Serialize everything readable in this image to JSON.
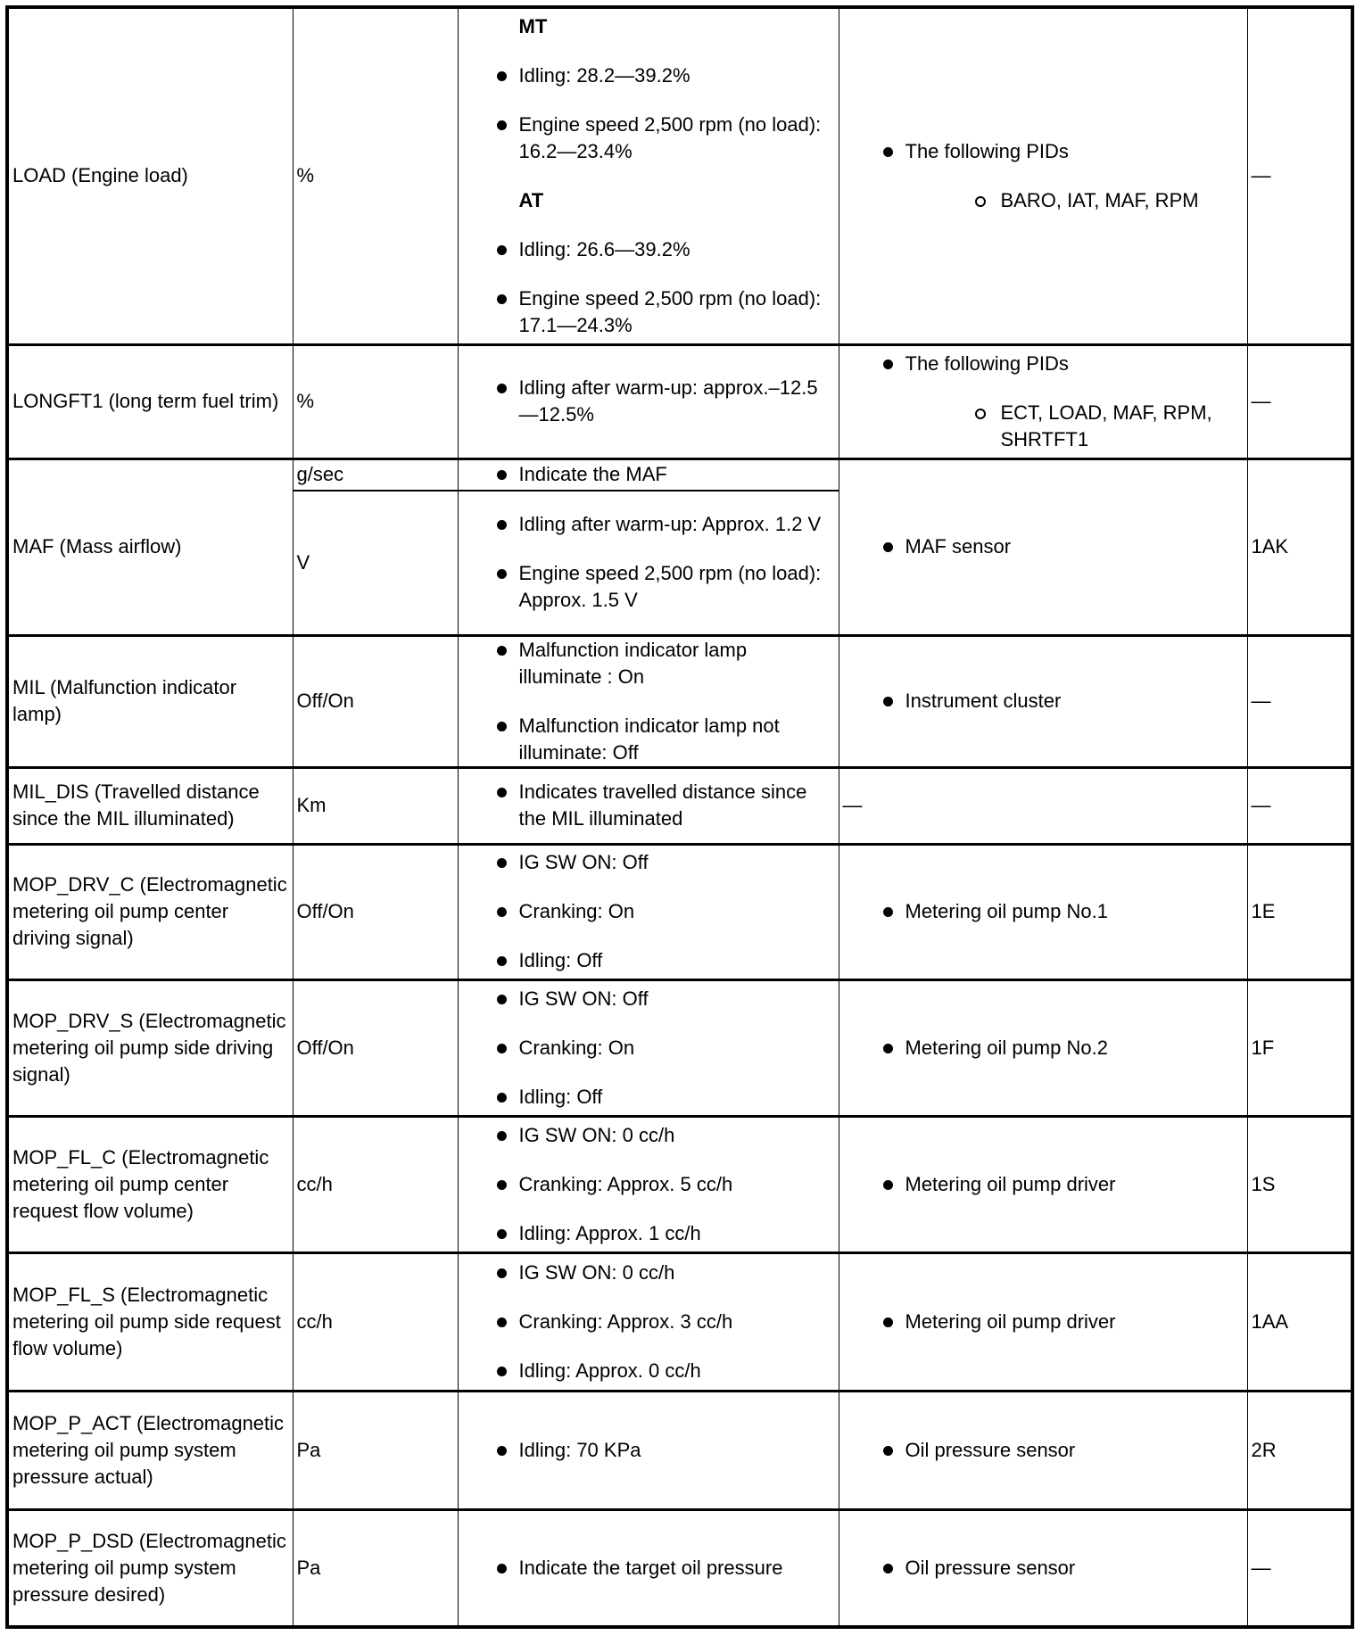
{
  "rows": [
    {
      "name": "LOAD (Engine load)",
      "unit": "%",
      "spec": [
        {
          "heading": "MT"
        },
        {
          "item": "Idling: 28.2—39.2%"
        },
        {
          "item": "Engine speed 2,500 rpm (no load): 16.2—23.4%"
        },
        {
          "heading": "AT"
        },
        {
          "item": "Idling: 26.6—39.2%"
        },
        {
          "item": "Engine speed 2,500 rpm (no load): 17.1—24.3%"
        }
      ],
      "cond": {
        "item": "The following PIDs",
        "sub": "BARO, IAT, MAF, RPM"
      },
      "terminal": "—"
    },
    {
      "name": "LONGFT1 (long term fuel trim)",
      "unit": "%",
      "spec": [
        {
          "item": "Idling after warm-up: approx.–12.5—12.5%"
        }
      ],
      "cond": {
        "item": "The following PIDs",
        "sub": "ECT, LOAD, MAF, RPM, SHRTFT1"
      },
      "terminal": "—"
    },
    {
      "name": "MAF (Mass airflow)",
      "unit": "g/sec",
      "spec": [
        {
          "item": "Indicate the MAF"
        }
      ],
      "cond": {
        "item": "MAF sensor"
      },
      "terminal": "1AK",
      "sub_unit": "V",
      "sub_spec": [
        {
          "item": "Idling after warm-up: Approx. 1.2 V"
        },
        {
          "item": "Engine speed 2,500 rpm (no load): Approx. 1.5 V"
        }
      ]
    },
    {
      "name": "MIL (Malfunction indicator lamp)",
      "unit": "Off/On",
      "spec": [
        {
          "item": "Malfunction indicator lamp illuminate : On"
        },
        {
          "item": "Malfunction indicator lamp not illuminate: Off"
        }
      ],
      "cond": {
        "item": "Instrument cluster"
      },
      "terminal": "—"
    },
    {
      "name": "MIL_DIS (Travelled distance since the MIL illuminated)",
      "unit": "Km",
      "spec": [
        {
          "item": "Indicates travelled distance since the MIL illuminated"
        }
      ],
      "cond": {
        "text": "—"
      },
      "terminal": "—"
    },
    {
      "name": "MOP_DRV_C (Electromagnetic metering oil pump center driving signal)",
      "unit": "Off/On",
      "spec": [
        {
          "item": "IG SW ON: Off"
        },
        {
          "item": "Cranking: On"
        },
        {
          "item": "Idling: Off"
        }
      ],
      "cond": {
        "item": "Metering oil pump No.1"
      },
      "terminal": "1E"
    },
    {
      "name": "MOP_DRV_S (Electromagnetic metering oil pump side driving signal)",
      "unit": "Off/On",
      "spec": [
        {
          "item": "IG SW ON: Off"
        },
        {
          "item": "Cranking: On"
        },
        {
          "item": "Idling: Off"
        }
      ],
      "cond": {
        "item": "Metering oil pump No.2"
      },
      "terminal": "1F"
    },
    {
      "name": "MOP_FL_C (Electromagnetic metering oil pump center request flow volume)",
      "unit": "cc/h",
      "spec": [
        {
          "item": "IG SW ON: 0 cc/h"
        },
        {
          "item": "Cranking: Approx. 5 cc/h"
        },
        {
          "item": "Idling: Approx. 1 cc/h"
        }
      ],
      "cond": {
        "item": "Metering oil pump driver"
      },
      "terminal": "1S"
    },
    {
      "name": "MOP_FL_S (Electromagnetic metering oil pump side request flow volume)",
      "unit": "cc/h",
      "spec": [
        {
          "item": "IG SW ON: 0 cc/h"
        },
        {
          "item": "Cranking: Approx. 3 cc/h"
        },
        {
          "item": "Idling: Approx. 0 cc/h"
        }
      ],
      "cond": {
        "item": "Metering oil pump driver"
      },
      "terminal": "1AA"
    },
    {
      "name": "MOP_P_ACT (Electromagnetic metering oil pump system pressure actual)",
      "unit": "Pa",
      "spec": [
        {
          "item": "Idling: 70 KPa"
        }
      ],
      "cond": {
        "item": "Oil pressure sensor"
      },
      "terminal": "2R"
    },
    {
      "name": "MOP_P_DSD (Electromagnetic metering oil pump system pressure desired)",
      "unit": "Pa",
      "spec": [
        {
          "item": "Indicate the target oil pressure"
        }
      ],
      "cond": {
        "item": "Oil pressure sensor"
      },
      "terminal": "—"
    }
  ]
}
